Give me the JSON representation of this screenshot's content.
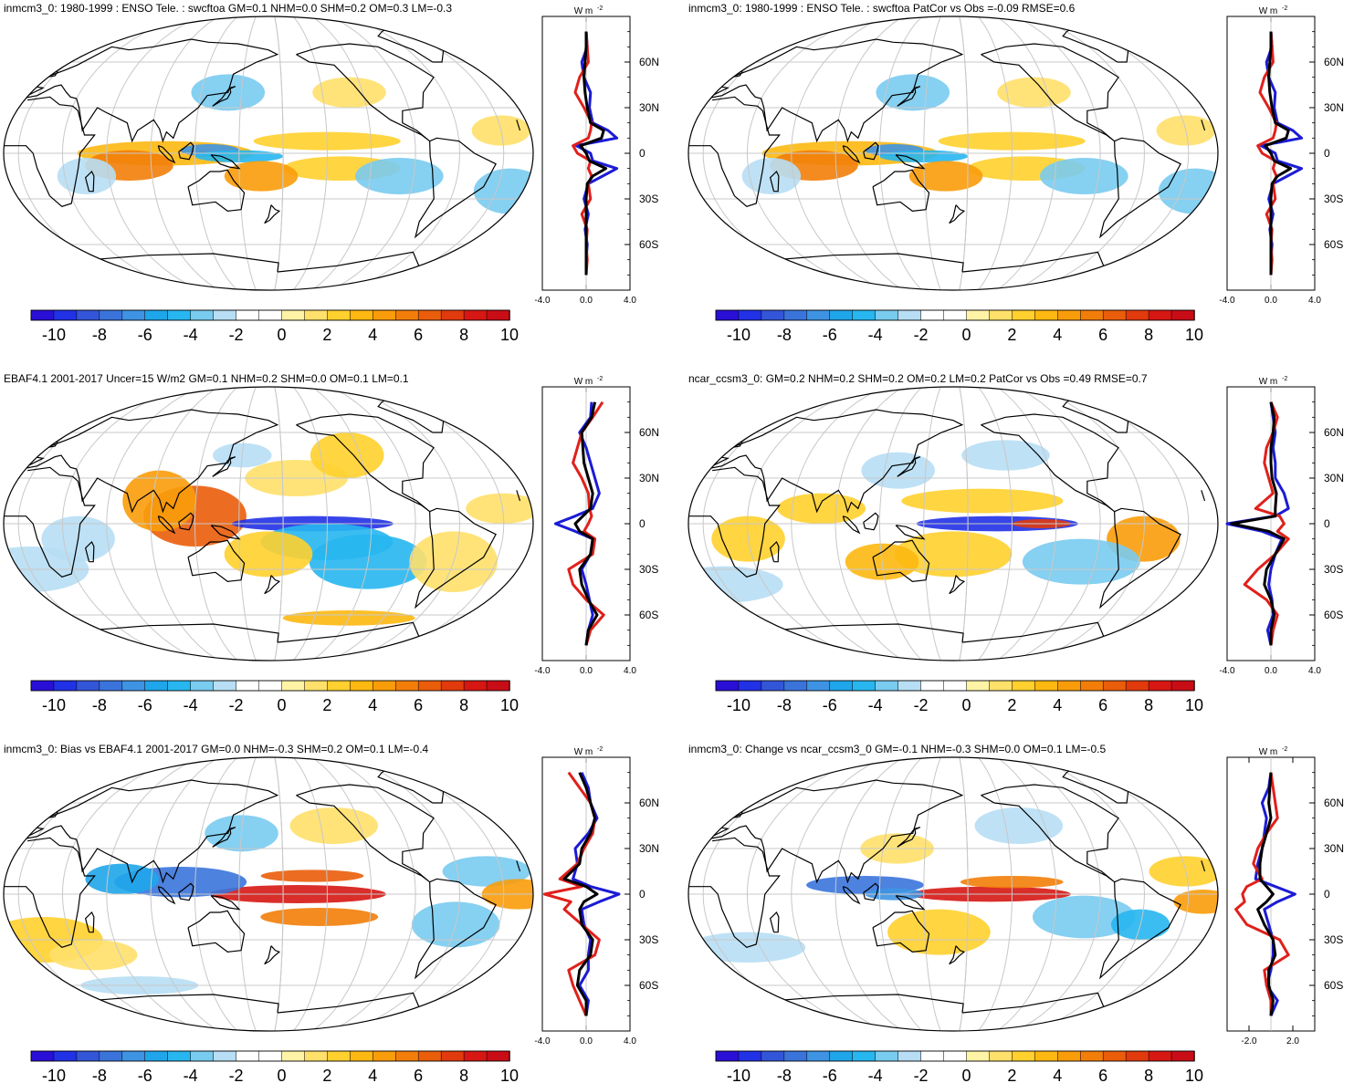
{
  "colorbar": {
    "colors": [
      "#2a0fd6",
      "#2131e6",
      "#3356d8",
      "#3a74db",
      "#3f93e3",
      "#1fa6ea",
      "#27b6ef",
      "#79cbef",
      "#b7def4",
      "#ffffff",
      "#ffffff",
      "#fff3a6",
      "#ffe06a",
      "#ffd02e",
      "#fdb811",
      "#f99c0a",
      "#f27e09",
      "#ea5d0a",
      "#e13a0d",
      "#d61713",
      "#c90d16"
    ],
    "labels": [
      "-10",
      "-8",
      "-6",
      "-4",
      "-2",
      "0",
      "2",
      "4",
      "6",
      "8",
      "10"
    ]
  },
  "units_label": "W m",
  "units_sup": "-2",
  "lat_labels": [
    "60N",
    "30N",
    "0",
    "30S",
    "60S"
  ],
  "chart_data": [
    {
      "type": "map",
      "title": "inmcm3_0: 1980-1999 : ENSO Tele. : swcftoa GM=0.1 NHM=0.0 SHM=0.2 OM=0.3 LM=-0.3",
      "zonal_xticks": [
        "-4.0",
        "0.0",
        "4.0"
      ],
      "zonal_xlim": [
        -4,
        4
      ],
      "ylim": [
        -90,
        90
      ],
      "series": [
        {
          "name": "",
          "color": "#1b1bd6",
          "lat": [
            80,
            70,
            60,
            50,
            40,
            30,
            20,
            15,
            10,
            5,
            0,
            -5,
            -10,
            -15,
            -20,
            -30,
            -40,
            -50,
            -60,
            -70,
            -80
          ],
          "values": [
            0.0,
            0.1,
            -0.4,
            -0.2,
            0.4,
            0.3,
            0.6,
            2.0,
            2.8,
            -0.9,
            0.4,
            0.6,
            2.8,
            1.5,
            0.2,
            -0.2,
            0.2,
            -0.1,
            0.1,
            0.0,
            0.0
          ]
        },
        {
          "name": "",
          "color": "#e0201b",
          "lat": [
            80,
            70,
            60,
            50,
            40,
            30,
            20,
            15,
            10,
            5,
            0,
            -5,
            -10,
            -15,
            -20,
            -30,
            -40,
            -50,
            -60,
            -70,
            -80
          ],
          "values": [
            0.0,
            0.1,
            0.2,
            -0.6,
            -1.0,
            -0.2,
            0.5,
            0.4,
            0.2,
            -1.2,
            -0.8,
            0.4,
            0.2,
            0.5,
            0.2,
            0.4,
            -0.4,
            0.1,
            0.0,
            0.1,
            0.0
          ]
        },
        {
          "name": "",
          "color": "#000000",
          "lat": [
            80,
            70,
            60,
            50,
            40,
            30,
            20,
            15,
            10,
            5,
            0,
            -5,
            -10,
            -15,
            -20,
            -30,
            -40,
            -50,
            -60,
            -70,
            -80
          ],
          "values": [
            0.0,
            0.0,
            -0.1,
            -0.2,
            -0.1,
            0.1,
            0.4,
            1.6,
            1.4,
            -0.5,
            0.0,
            0.3,
            1.8,
            0.6,
            0.1,
            0.0,
            0.0,
            0.0,
            0.0,
            0.0,
            0.0
          ]
        }
      ]
    },
    {
      "type": "map",
      "title": "inmcm3_0: 1980-1999 : ENSO Tele. : swcftoa PatCor vs Obs =-0.09 RMSE=0.6",
      "zonal_xticks": [
        "-4.0",
        "0.0",
        "4.0"
      ],
      "zonal_xlim": [
        -4,
        4
      ],
      "ylim": [
        -90,
        90
      ],
      "series": [
        {
          "name": "",
          "color": "#1b1bd6",
          "lat": [
            80,
            70,
            60,
            50,
            40,
            30,
            20,
            15,
            10,
            5,
            0,
            -5,
            -10,
            -15,
            -20,
            -30,
            -40,
            -50,
            -60,
            -70,
            -80
          ],
          "values": [
            0.0,
            0.1,
            -0.4,
            -0.2,
            0.4,
            0.3,
            0.6,
            2.0,
            2.8,
            -0.9,
            0.4,
            0.6,
            2.8,
            1.5,
            0.2,
            -0.2,
            0.2,
            -0.1,
            0.1,
            0.0,
            0.0
          ]
        },
        {
          "name": "",
          "color": "#e0201b",
          "lat": [
            80,
            70,
            60,
            50,
            40,
            30,
            20,
            15,
            10,
            5,
            0,
            -5,
            -10,
            -15,
            -20,
            -30,
            -40,
            -50,
            -60,
            -70,
            -80
          ],
          "values": [
            0.0,
            0.1,
            0.2,
            -0.6,
            -1.0,
            -0.2,
            0.5,
            0.4,
            0.2,
            -1.2,
            -0.8,
            0.4,
            0.2,
            0.5,
            0.2,
            0.4,
            -0.4,
            0.1,
            0.0,
            0.1,
            0.0
          ]
        },
        {
          "name": "",
          "color": "#000000",
          "lat": [
            80,
            70,
            60,
            50,
            40,
            30,
            20,
            15,
            10,
            5,
            0,
            -5,
            -10,
            -15,
            -20,
            -30,
            -40,
            -50,
            -60,
            -70,
            -80
          ],
          "values": [
            0.0,
            0.0,
            -0.1,
            -0.2,
            -0.1,
            0.1,
            0.4,
            1.6,
            1.4,
            -0.5,
            0.0,
            0.3,
            1.8,
            0.6,
            0.1,
            0.0,
            0.0,
            0.0,
            0.0,
            0.0,
            0.0
          ]
        }
      ]
    },
    {
      "type": "map",
      "title": "EBAF4.1 2001-2017 Uncer=15 W/m2 GM=0.1 NHM=0.2 SHM=0.0 OM=0.1 LM=0.1",
      "zonal_xticks": [
        "-4.0",
        "0.0",
        "4.0"
      ],
      "zonal_xlim": [
        -4,
        4
      ],
      "ylim": [
        -90,
        90
      ],
      "series": [
        {
          "name": "",
          "color": "#1b1bd6",
          "lat": [
            80,
            70,
            60,
            50,
            40,
            30,
            20,
            10,
            5,
            0,
            -5,
            -10,
            -20,
            -30,
            -40,
            -50,
            -60,
            -70,
            -80
          ],
          "values": [
            0.5,
            0.4,
            -0.6,
            0.0,
            0.4,
            0.8,
            1.2,
            0.6,
            -1.0,
            -2.8,
            -1.0,
            0.6,
            0.4,
            -0.4,
            0.0,
            0.3,
            0.6,
            0.2,
            0.0
          ]
        },
        {
          "name": "",
          "color": "#e0201b",
          "lat": [
            80,
            70,
            60,
            50,
            40,
            30,
            20,
            10,
            5,
            0,
            -5,
            -10,
            -20,
            -30,
            -40,
            -50,
            -60,
            -70,
            -80
          ],
          "values": [
            1.5,
            0.6,
            -0.4,
            -0.8,
            -1.2,
            -0.4,
            0.2,
            0.3,
            0.5,
            0.2,
            -0.2,
            0.8,
            0.6,
            -1.6,
            -1.2,
            0.0,
            1.6,
            0.4,
            0.0
          ]
        },
        {
          "name": "",
          "color": "#000000",
          "lat": [
            80,
            70,
            60,
            50,
            40,
            30,
            20,
            10,
            5,
            0,
            -5,
            -10,
            -20,
            -30,
            -40,
            -50,
            -60,
            -70,
            -80
          ],
          "values": [
            0.8,
            0.5,
            -0.4,
            -0.3,
            -0.2,
            0.2,
            0.6,
            0.4,
            -0.3,
            -1.0,
            -0.6,
            0.6,
            0.4,
            -0.6,
            -0.4,
            0.2,
            1.0,
            0.2,
            0.0
          ]
        }
      ]
    },
    {
      "type": "map",
      "title": "ncar_ccsm3_0: GM=0.2 NHM=0.2 SHM=0.2 OM=0.2 LM=0.2 PatCor vs Obs =0.49 RMSE=0.7",
      "zonal_xticks": [
        "-4.0",
        "0.0",
        "4.0"
      ],
      "zonal_xlim": [
        -4,
        4
      ],
      "ylim": [
        -90,
        90
      ],
      "series": [
        {
          "name": "",
          "color": "#1b1bd6",
          "lat": [
            80,
            70,
            60,
            50,
            40,
            30,
            20,
            10,
            5,
            0,
            -5,
            -10,
            -20,
            -30,
            -40,
            -50,
            -60,
            -70,
            -80
          ],
          "values": [
            0.0,
            0.2,
            0.4,
            0.2,
            0.4,
            0.4,
            1.2,
            1.6,
            0.4,
            -4.0,
            -0.8,
            1.0,
            0.4,
            0.0,
            -0.2,
            0.1,
            0.2,
            -0.3,
            0.0
          ]
        },
        {
          "name": "",
          "color": "#e0201b",
          "lat": [
            80,
            70,
            60,
            50,
            40,
            30,
            20,
            10,
            5,
            0,
            -5,
            -10,
            -20,
            -30,
            -40,
            -50,
            -60,
            -70,
            -80
          ],
          "values": [
            0.0,
            0.6,
            0.2,
            -0.4,
            -0.6,
            -0.2,
            0.2,
            -1.4,
            0.8,
            1.2,
            0.6,
            1.6,
            0.4,
            -1.2,
            -2.4,
            -0.4,
            0.6,
            0.2,
            0.0
          ]
        },
        {
          "name": "",
          "color": "#000000",
          "lat": [
            80,
            70,
            60,
            50,
            40,
            30,
            20,
            10,
            5,
            0,
            -5,
            -10,
            -20,
            -30,
            -40,
            -50,
            -60,
            -70,
            -80
          ],
          "values": [
            0.0,
            0.3,
            0.2,
            0.0,
            0.0,
            0.1,
            0.5,
            0.4,
            0.4,
            -3.6,
            -0.2,
            1.2,
            0.4,
            -0.4,
            -0.6,
            0.0,
            0.3,
            0.0,
            0.0
          ]
        }
      ]
    },
    {
      "type": "map",
      "title": "inmcm3_0: Bias vs EBAF4.1 2001-2017 GM=0.0 NHM=-0.3 SHM=0.2 OM=0.1 LM=-0.4",
      "zonal_xticks": [
        "-4.0",
        "0.0",
        "4.0"
      ],
      "zonal_xlim": [
        -4,
        4
      ],
      "ylim": [
        -90,
        90
      ],
      "series": [
        {
          "name": "",
          "color": "#1b1bd6",
          "lat": [
            80,
            70,
            60,
            50,
            40,
            30,
            20,
            10,
            5,
            0,
            -5,
            -10,
            -20,
            -30,
            -40,
            -50,
            -60,
            -70,
            -80
          ],
          "values": [
            -0.4,
            0.2,
            0.4,
            1.0,
            0.2,
            -1.0,
            -0.8,
            -1.2,
            0.4,
            3.0,
            1.2,
            -0.4,
            -0.2,
            0.4,
            0.2,
            0.2,
            -0.6,
            0.2,
            0.0
          ]
        },
        {
          "name": "",
          "color": "#e0201b",
          "lat": [
            80,
            70,
            60,
            50,
            40,
            30,
            20,
            10,
            5,
            0,
            -5,
            -10,
            -20,
            -30,
            -40,
            -50,
            -60,
            -70,
            -80
          ],
          "values": [
            -1.6,
            -0.6,
            0.4,
            0.8,
            0.6,
            -0.2,
            -0.8,
            -2.4,
            -0.4,
            -3.8,
            -1.4,
            -2.0,
            -0.4,
            1.2,
            0.8,
            -1.6,
            -1.2,
            -0.6,
            0.0
          ]
        },
        {
          "name": "",
          "color": "#000000",
          "lat": [
            80,
            70,
            60,
            50,
            40,
            30,
            20,
            10,
            5,
            0,
            -5,
            -10,
            -20,
            -30,
            -40,
            -50,
            -60,
            -70,
            -80
          ],
          "values": [
            -0.6,
            0.0,
            0.4,
            0.8,
            0.4,
            -0.4,
            -0.6,
            -2.0,
            0.0,
            1.0,
            -0.2,
            -0.6,
            -0.4,
            0.6,
            0.4,
            -0.6,
            -0.8,
            0.0,
            0.0
          ]
        }
      ]
    },
    {
      "type": "map",
      "title": "inmcm3_0: Change vs ncar_ccsm3_0 GM=-0.1 NHM=-0.3 SHM=0.0 OM=0.1 LM=-0.5",
      "zonal_xticks": [
        "-2.0",
        "2.0"
      ],
      "zonal_xlim": [
        -4,
        4
      ],
      "ylim": [
        -90,
        90
      ],
      "series": [
        {
          "name": "",
          "color": "#1b1bd6",
          "lat": [
            80,
            70,
            60,
            50,
            40,
            30,
            20,
            10,
            5,
            0,
            -5,
            -10,
            -20,
            -30,
            -40,
            -50,
            -60,
            -70,
            -80
          ],
          "values": [
            0.0,
            -0.2,
            -0.8,
            -0.4,
            -0.6,
            -0.8,
            -1.2,
            -1.4,
            0.4,
            2.2,
            0.6,
            -0.6,
            -0.2,
            0.2,
            0.2,
            0.0,
            -0.4,
            0.6,
            0.0
          ]
        },
        {
          "name": "",
          "color": "#e0201b",
          "lat": [
            80,
            70,
            60,
            50,
            40,
            30,
            20,
            10,
            5,
            0,
            -5,
            -10,
            -20,
            -30,
            -40,
            -50,
            -60,
            -70,
            -80
          ],
          "values": [
            0.0,
            0.2,
            0.4,
            0.6,
            -0.4,
            -1.2,
            -1.6,
            -0.8,
            -2.2,
            -2.6,
            -2.4,
            -3.2,
            -2.2,
            0.8,
            1.6,
            -0.6,
            -0.4,
            0.0,
            0.0
          ]
        },
        {
          "name": "",
          "color": "#000000",
          "lat": [
            80,
            70,
            60,
            50,
            40,
            30,
            20,
            10,
            5,
            0,
            -5,
            -10,
            -20,
            -30,
            -40,
            -50,
            -60,
            -70,
            -80
          ],
          "values": [
            0.0,
            -0.1,
            -0.2,
            0.0,
            -0.4,
            -0.8,
            -1.0,
            -1.0,
            -0.4,
            0.2,
            -0.4,
            -1.2,
            -0.6,
            0.2,
            0.4,
            -0.2,
            -0.2,
            0.2,
            0.0
          ]
        }
      ]
    }
  ]
}
